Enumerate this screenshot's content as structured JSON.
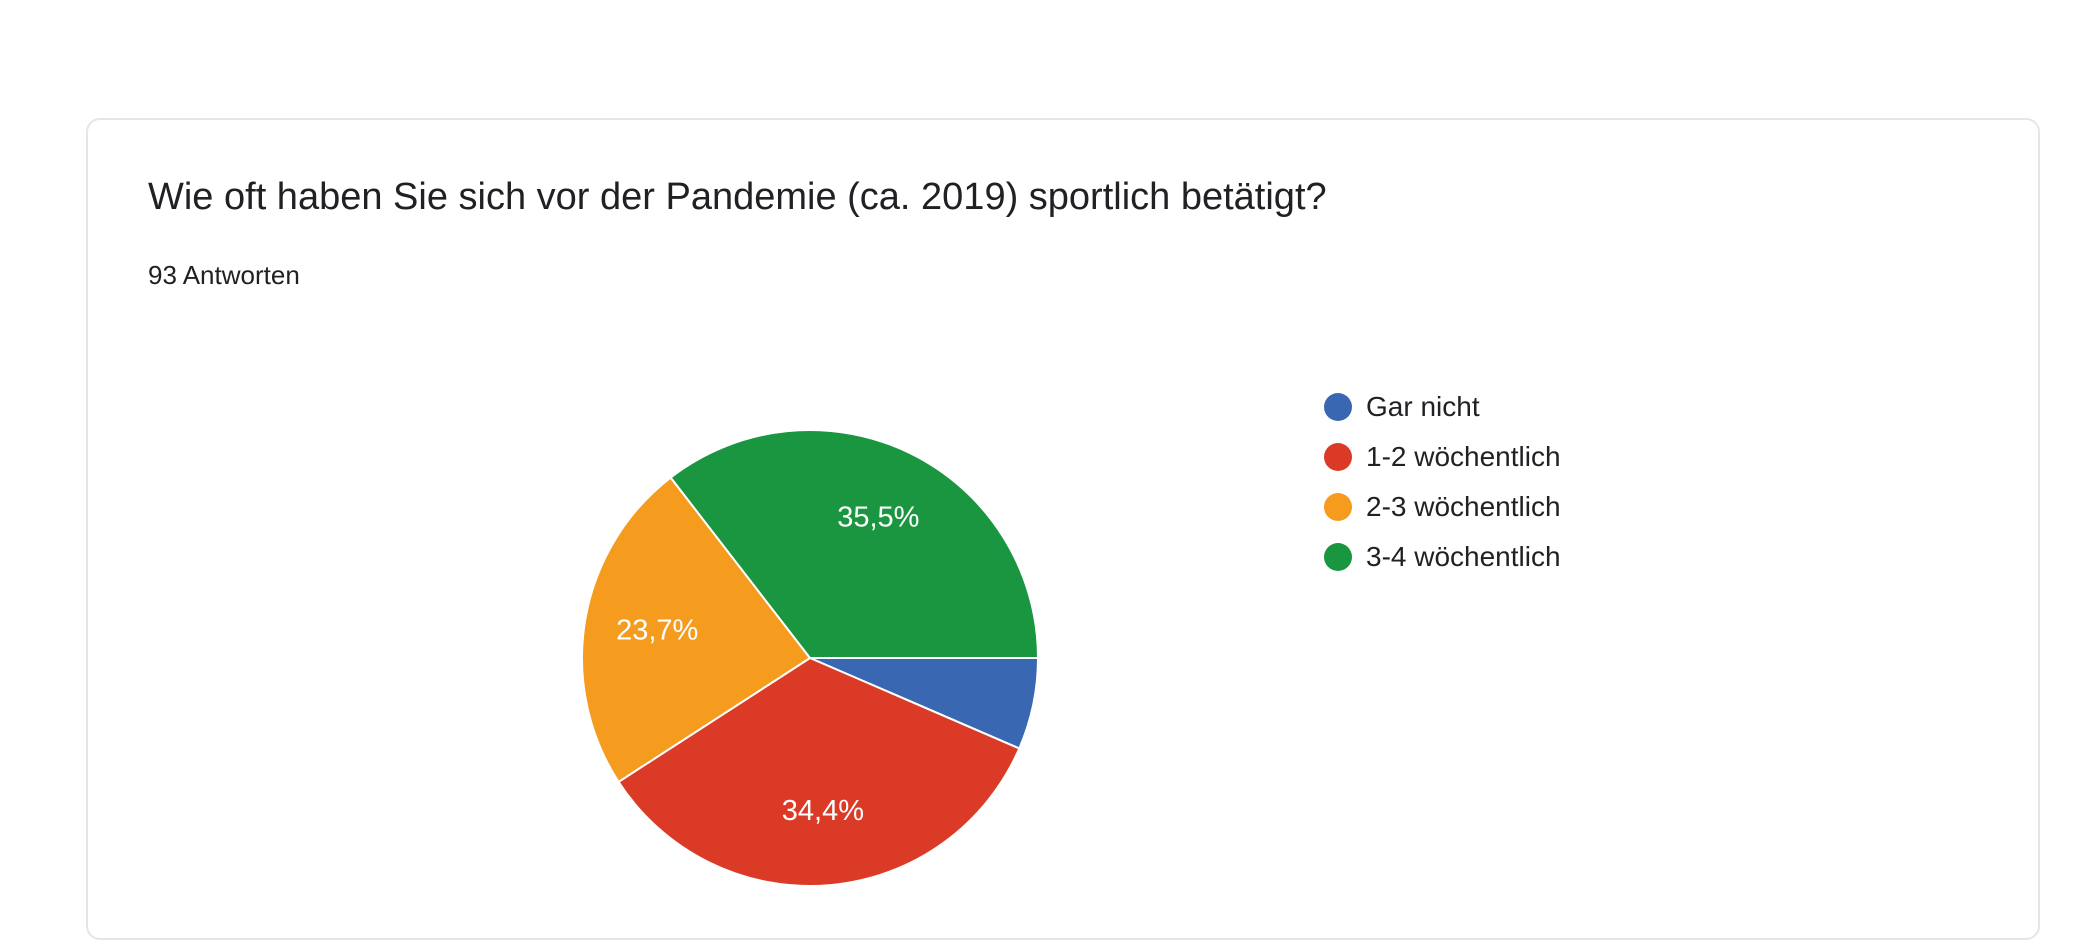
{
  "card": {
    "question": "Wie oft haben Sie sich vor der Pandemie (ca. 2019) sportlich betätigt?",
    "responses": "93 Antworten"
  },
  "chart_data": {
    "type": "pie",
    "title": "Wie oft haben Sie sich vor der Pandemie (ca. 2019) sportlich betätigt?",
    "total_responses": 93,
    "legend_position": "right",
    "start_angle": "3 o'clock, clockwise",
    "slices": [
      {
        "label": "Gar nicht",
        "value": 6.5,
        "display": "",
        "color": "#3a67b1"
      },
      {
        "label": "1-2 wöchentlich",
        "value": 34.4,
        "display": "34,4%",
        "color": "#db3b26"
      },
      {
        "label": "2-3 wöchentlich",
        "value": 23.7,
        "display": "23,7%",
        "color": "#f59b1e"
      },
      {
        "label": "3-4 wöchentlich",
        "value": 35.5,
        "display": "35,5%",
        "color": "#1a9641"
      }
    ]
  }
}
